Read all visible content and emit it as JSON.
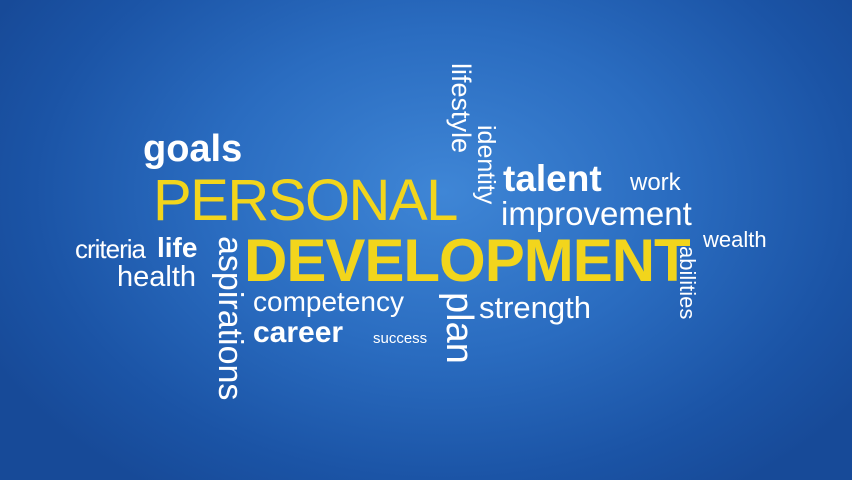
{
  "background": {
    "inner": "#3f86d6",
    "outer": "#174a98"
  },
  "colors": {
    "highlight": "#f2d51c",
    "text": "#ffffff"
  },
  "words": {
    "goals": "goals",
    "personal": "PERSONAL",
    "development": "DEVELOPMENT",
    "talent": "talent",
    "work": "work",
    "improvement": "improvement",
    "wealth": "wealth",
    "criteria": "criteria",
    "life": "life",
    "health": "health",
    "competency": "competency",
    "career": "career",
    "success": "success",
    "strength": "strength",
    "lifestyle": "lifestyle",
    "identity": "identity",
    "aspirations": "aspirations",
    "plan": "plan",
    "abilities": "abilities"
  }
}
